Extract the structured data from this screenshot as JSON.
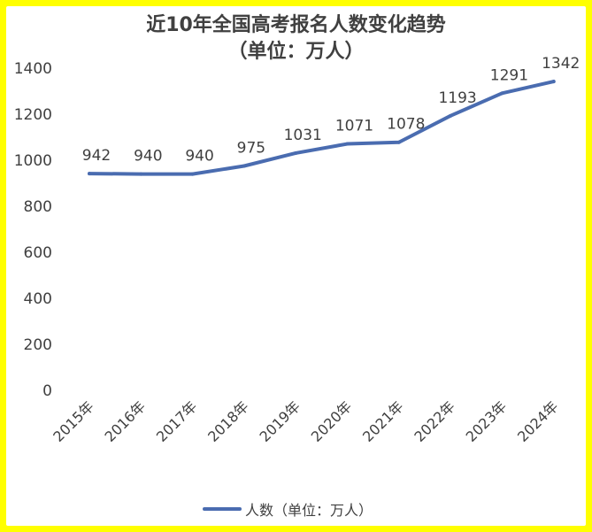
{
  "chart_data": {
    "type": "line",
    "title": "近10年全国高考报名人数变化趋势",
    "subtitle": "（单位：万人）",
    "categories": [
      "2015年",
      "2016年",
      "2017年",
      "2018年",
      "2019年",
      "2020年",
      "2021年",
      "2022年",
      "2023年",
      "2024年"
    ],
    "series": [
      {
        "name": "人数（单位：万人）",
        "values": [
          942,
          940,
          940,
          975,
          1031,
          1071,
          1078,
          1193,
          1291,
          1342
        ]
      }
    ],
    "data_labels": [
      "942",
      "940",
      "940",
      "975",
      "1031",
      "1071",
      "1078",
      "1193",
      "1291",
      "1342"
    ],
    "y_ticks": [
      "0",
      "200",
      "400",
      "600",
      "800",
      "1000",
      "1200",
      "1400"
    ],
    "ylim": [
      0,
      1400
    ],
    "grid": false,
    "legend_position": "bottom",
    "colors": {
      "line": "#4a6cb0",
      "text": "#404040",
      "frame": "#ffff00"
    }
  }
}
